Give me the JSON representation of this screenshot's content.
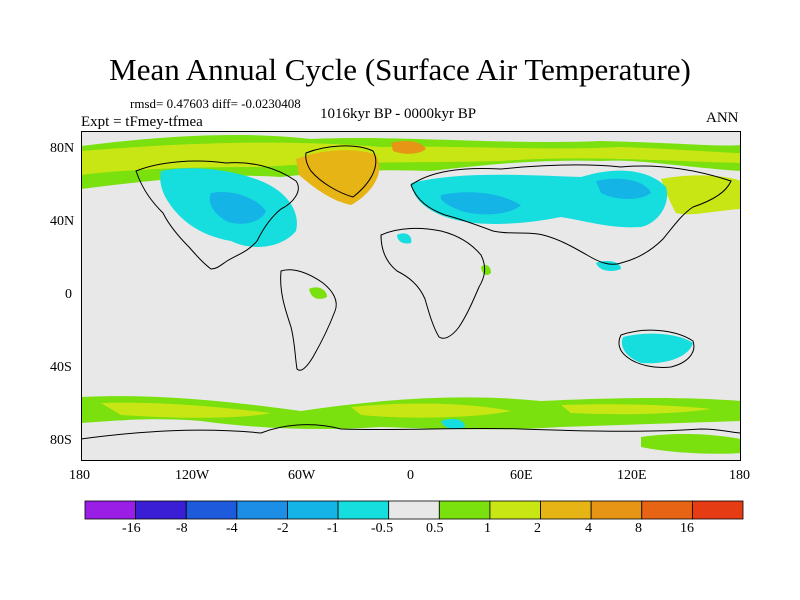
{
  "title": "Mean Annual Cycle (Surface Air Temperature)",
  "stats": "rmsd= 0.47603 diff= -0.0230408",
  "period": "1016kyr BP - 0000kyr BP",
  "experiment": "Expt = tFmey-tfmea",
  "season": "ANN",
  "axes": {
    "lat_labels": [
      "80N",
      "40N",
      "0",
      "40S",
      "80S"
    ],
    "lon_labels": [
      "180",
      "120W",
      "60W",
      "0",
      "60E",
      "120E",
      "180"
    ]
  },
  "colorbar": {
    "labels": [
      "-16",
      "-8",
      "-4",
      "-2",
      "-1",
      "-0.5",
      "0.5",
      "1",
      "2",
      "4",
      "8",
      "16"
    ],
    "colors": [
      "#9a1ee6",
      "#3a1ed6",
      "#1e5adc",
      "#1c8ee6",
      "#14b4e6",
      "#16dede",
      "#e8e8e8",
      "#7ae00e",
      "#c8e614",
      "#e6b414",
      "#e69614",
      "#e66414",
      "#e63c14"
    ]
  },
  "palette": {
    "neutral": "#e8e8e8",
    "cool1": "#16dede",
    "cool2": "#14b4e6",
    "warm1": "#7ae00e",
    "warm2": "#c8e614",
    "warm3": "#e6b414",
    "warm4": "#e69614",
    "coast": "#000000"
  }
}
